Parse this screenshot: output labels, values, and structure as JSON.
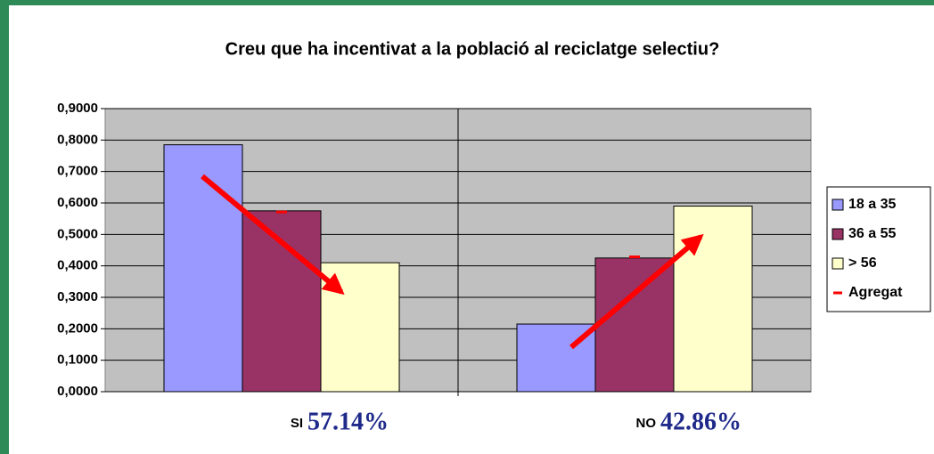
{
  "chart_data": {
    "type": "bar",
    "title": "Creu que ha incentivat a la població al reciclatge selectiu?",
    "categories": [
      "SI",
      "NO"
    ],
    "series": [
      {
        "name": "18 a 35",
        "color": "#9999ff",
        "values": [
          0.785,
          0.215
        ]
      },
      {
        "name": "36 a 55",
        "color": "#993366",
        "values": [
          0.575,
          0.425
        ]
      },
      {
        "name": "> 56",
        "color": "#ffffcc",
        "values": [
          0.41,
          0.59
        ]
      },
      {
        "name": "Agregat",
        "color": "#ff0000",
        "type": "marker",
        "values": [
          0.5714,
          0.4286
        ],
        "value_labels": [
          "57.14%",
          "42.86%"
        ]
      }
    ],
    "ylim": [
      0,
      0.9
    ],
    "yticks": [
      {
        "value": 0,
        "label": "0,0000"
      },
      {
        "value": 0.1,
        "label": "0,1000"
      },
      {
        "value": 0.2,
        "label": "0,2000"
      },
      {
        "value": 0.3,
        "label": "0,3000"
      },
      {
        "value": 0.4,
        "label": "0,4000"
      },
      {
        "value": 0.5,
        "label": "0,5000"
      },
      {
        "value": 0.6,
        "label": "0,6000"
      },
      {
        "value": 0.7,
        "label": "0,7000"
      },
      {
        "value": 0.8,
        "label": "0,8000"
      },
      {
        "value": 0.9,
        "label": "0,9000"
      }
    ],
    "grid": true,
    "legend": "right"
  }
}
